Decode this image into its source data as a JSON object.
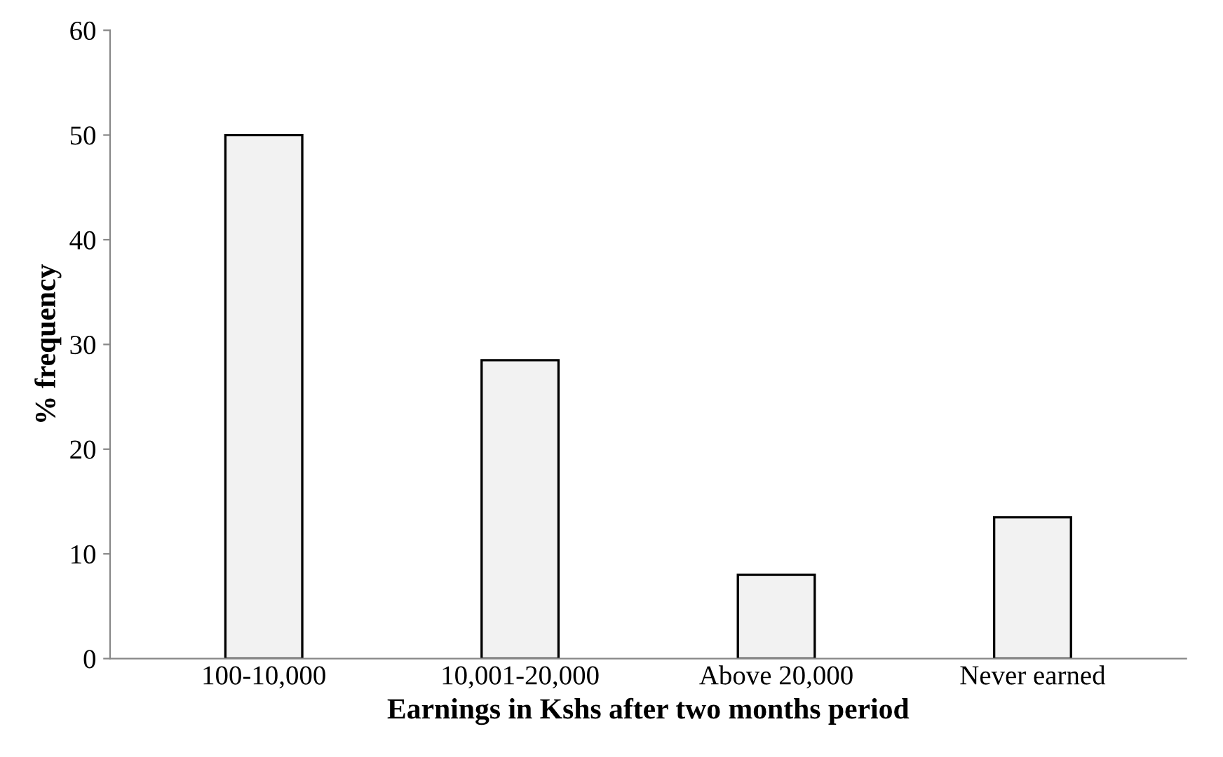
{
  "chart_data": {
    "type": "bar",
    "xlabel": "Earnings in Kshs after two months period",
    "ylabel": "% frequency",
    "categories": [
      "100-10,000",
      "10,001-20,000",
      "Above 20,000",
      "Never earned"
    ],
    "values": [
      50,
      28.5,
      8,
      13.5
    ],
    "color": "#f2f2f2",
    "ylim": [
      0,
      60
    ],
    "yticks": [
      0,
      10,
      20,
      30,
      40,
      50,
      60
    ],
    "grid": false,
    "legend": false
  }
}
